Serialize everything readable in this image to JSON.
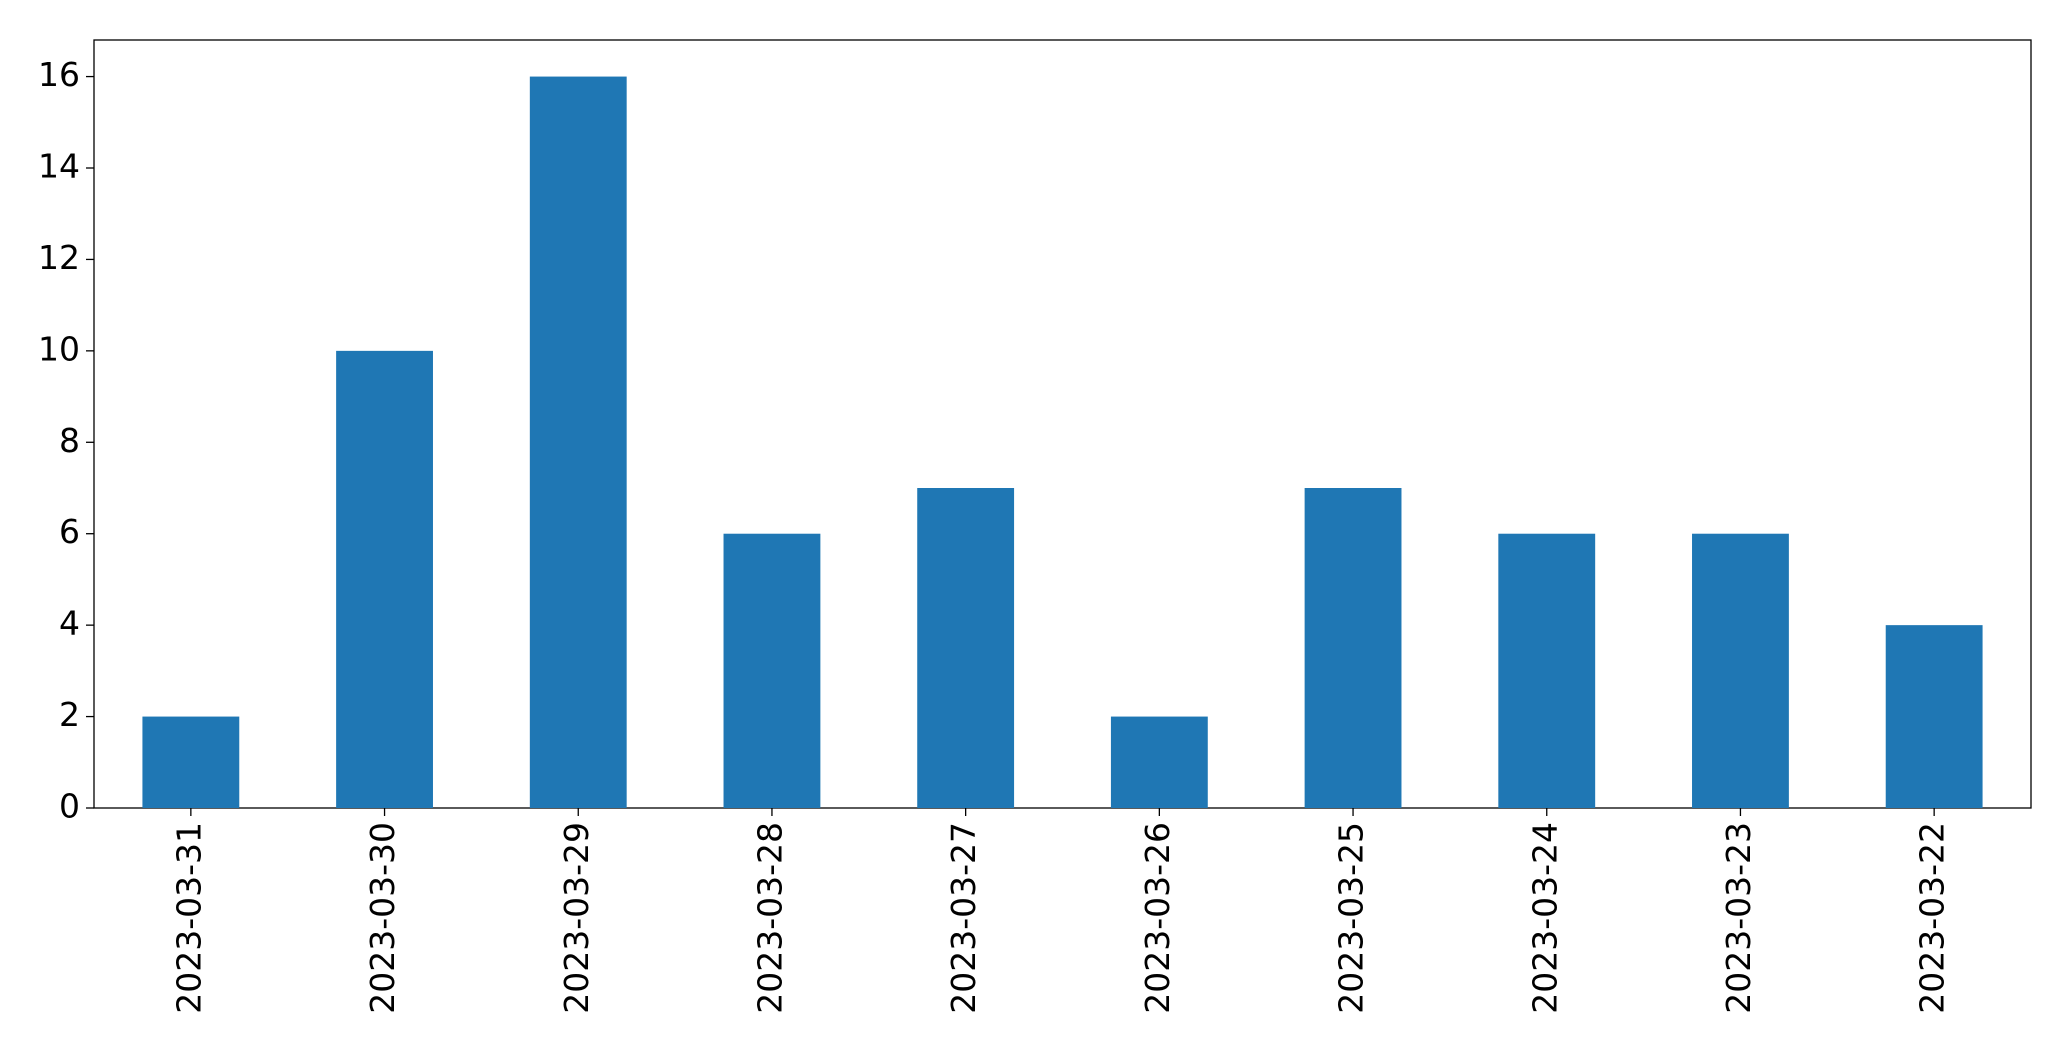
{
  "chart_data": {
    "type": "bar",
    "categories": [
      "2023-03-31",
      "2023-03-30",
      "2023-03-29",
      "2023-03-28",
      "2023-03-27",
      "2023-03-26",
      "2023-03-25",
      "2023-03-24",
      "2023-03-23",
      "2023-03-22"
    ],
    "values": [
      2,
      10,
      16,
      6,
      7,
      2,
      7,
      6,
      6,
      4
    ],
    "color": "#1f77b4",
    "ylim": [
      0,
      16.8
    ],
    "yticks": [
      0,
      2,
      4,
      6,
      8,
      10,
      12,
      14,
      16
    ],
    "grid": false
  }
}
